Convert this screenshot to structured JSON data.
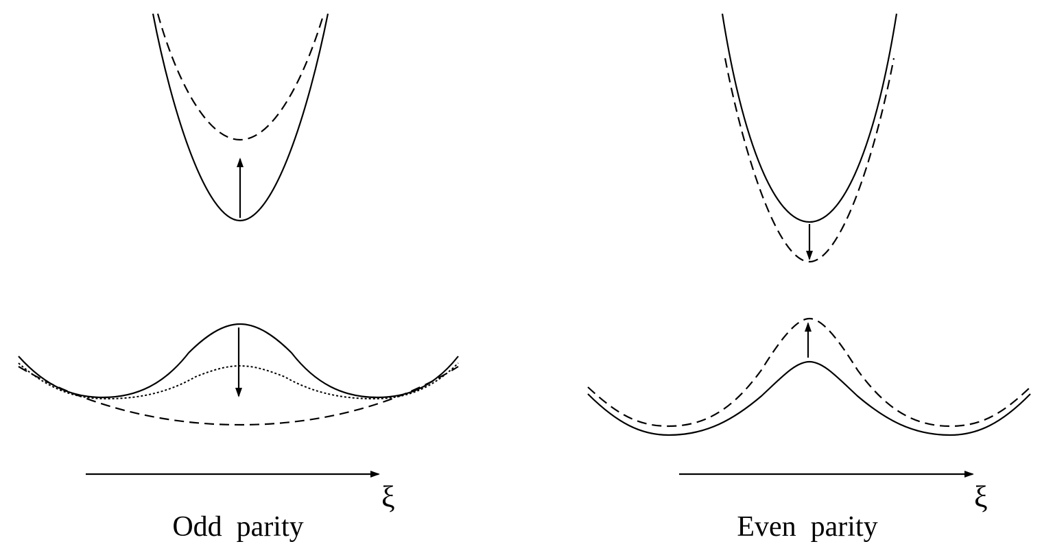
{
  "panels": [
    {
      "caption": "Odd  parity",
      "axis_label": "ξ"
    },
    {
      "caption": "Even  parity",
      "axis_label": "ξ"
    }
  ],
  "styles": {
    "line_color": "#000000",
    "background": "#ffffff"
  }
}
